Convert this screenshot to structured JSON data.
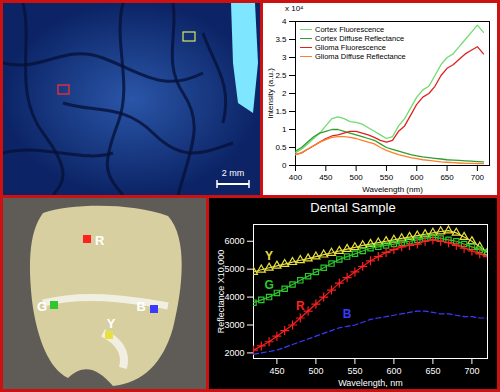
{
  "chart_data": [
    {
      "type": "line",
      "xlabel": "Wavelength (nm)",
      "ylabel": "Intensity (a.u.)",
      "annotations": [
        "x 10⁴"
      ],
      "x": [
        400,
        410,
        420,
        430,
        440,
        450,
        460,
        470,
        480,
        490,
        500,
        510,
        520,
        530,
        540,
        550,
        560,
        570,
        580,
        590,
        600,
        610,
        620,
        630,
        640,
        650,
        660,
        670,
        680,
        690,
        700,
        710
      ],
      "series": [
        {
          "name": "Cortex Fluorescence",
          "color": "#6fdc6f",
          "values": [
            0.35,
            0.45,
            0.6,
            0.75,
            0.9,
            1.1,
            1.3,
            1.35,
            1.3,
            1.22,
            1.2,
            1.15,
            1.05,
            0.95,
            0.85,
            0.75,
            0.8,
            1.1,
            1.3,
            1.6,
            1.9,
            2.1,
            2.2,
            2.5,
            2.8,
            3.0,
            3.1,
            3.3,
            3.5,
            3.7,
            3.9,
            3.7
          ]
        },
        {
          "name": "Cortex Diffuse Reflectance",
          "color": "#2e9e2e",
          "values": [
            0.4,
            0.5,
            0.65,
            0.8,
            0.9,
            0.95,
            1.0,
            1.0,
            0.95,
            0.9,
            0.85,
            0.8,
            0.75,
            0.7,
            0.6,
            0.5,
            0.45,
            0.4,
            0.35,
            0.3,
            0.27,
            0.24,
            0.22,
            0.2,
            0.18,
            0.16,
            0.15,
            0.14,
            0.13,
            0.12,
            0.11,
            0.1
          ]
        },
        {
          "name": "Glioma Fluorescence",
          "color": "#e02020",
          "values": [
            0.3,
            0.35,
            0.45,
            0.55,
            0.65,
            0.75,
            0.82,
            0.85,
            0.9,
            0.95,
            0.95,
            0.9,
            0.85,
            0.78,
            0.7,
            0.65,
            0.7,
            0.95,
            1.1,
            1.4,
            1.7,
            1.9,
            2.0,
            2.2,
            2.5,
            2.7,
            2.8,
            2.95,
            3.1,
            3.2,
            3.3,
            3.1
          ]
        },
        {
          "name": "Glioma Diffuse Reflectance",
          "color": "#ff7f2a",
          "values": [
            0.3,
            0.35,
            0.45,
            0.55,
            0.65,
            0.72,
            0.78,
            0.8,
            0.8,
            0.78,
            0.75,
            0.7,
            0.65,
            0.6,
            0.5,
            0.42,
            0.36,
            0.3,
            0.26,
            0.22,
            0.19,
            0.16,
            0.14,
            0.12,
            0.1,
            0.09,
            0.08,
            0.07,
            0.06,
            0.06,
            0.05,
            0.05
          ]
        }
      ],
      "xlim": [
        400,
        720
      ],
      "xticks": [
        400,
        450,
        500,
        550,
        600,
        650,
        700
      ],
      "ylim": [
        0,
        4
      ],
      "yticks": [
        0,
        0.5,
        1,
        1.5,
        2,
        2.5,
        3,
        3.5,
        4
      ],
      "legend": "top-left"
    },
    {
      "type": "line",
      "title": "Dental Sample",
      "xlabel": "Wavelength, nm",
      "ylabel": "Reflectance X10,000",
      "x": [
        420,
        430,
        440,
        450,
        460,
        470,
        480,
        490,
        500,
        510,
        520,
        530,
        540,
        550,
        560,
        570,
        580,
        590,
        600,
        610,
        620,
        630,
        640,
        650,
        660,
        670,
        680,
        690,
        700,
        710,
        720
      ],
      "series": [
        {
          "name": "Y",
          "color": "#e8e040",
          "marker": "triangle",
          "line_style": "solid",
          "values": [
            4900,
            4980,
            5050,
            5120,
            5180,
            5250,
            5320,
            5380,
            5450,
            5520,
            5580,
            5650,
            5720,
            5780,
            5850,
            5900,
            5950,
            6000,
            6050,
            6100,
            6150,
            6200,
            6250,
            6300,
            6350,
            6380,
            6300,
            6150,
            6000,
            5800,
            5600
          ]
        },
        {
          "name": "G",
          "color": "#2ec82e",
          "marker": "square",
          "line_style": "solid",
          "values": [
            3800,
            3900,
            4000,
            4150,
            4300,
            4450,
            4600,
            4750,
            4900,
            5050,
            5200,
            5350,
            5450,
            5550,
            5650,
            5750,
            5800,
            5850,
            5900,
            5950,
            6000,
            6050,
            6100,
            6150,
            6100,
            6050,
            6000,
            5900,
            5800,
            5700,
            5600
          ]
        },
        {
          "name": "R",
          "color": "#ff2020",
          "marker": "plus",
          "line_style": "solid",
          "values": [
            2100,
            2250,
            2400,
            2600,
            2800,
            3000,
            3250,
            3500,
            3750,
            4000,
            4250,
            4500,
            4700,
            4900,
            5100,
            5300,
            5450,
            5600,
            5700,
            5800,
            5850,
            5900,
            6000,
            6050,
            6000,
            5950,
            5850,
            5750,
            5650,
            5550,
            5450
          ]
        },
        {
          "name": "B",
          "color": "#3a3aff",
          "line_style": "dashed",
          "values": [
            1950,
            2000,
            2050,
            2100,
            2200,
            2300,
            2400,
            2500,
            2600,
            2700,
            2800,
            2900,
            2950,
            3000,
            3100,
            3200,
            3250,
            3300,
            3350,
            3400,
            3450,
            3500,
            3500,
            3450,
            3400,
            3400,
            3350,
            3300,
            3300,
            3250,
            3250
          ]
        }
      ],
      "xlim": [
        420,
        720
      ],
      "xticks": [
        450,
        500,
        550,
        600,
        650,
        700
      ],
      "ylim": [
        1800,
        6600
      ],
      "yticks": [
        2000,
        3000,
        4000,
        5000,
        6000
      ]
    }
  ],
  "images": [
    {
      "scale_bar": "2 mm"
    },
    {
      "point_labels": [
        "R",
        "G",
        "B",
        "Y"
      ]
    }
  ]
}
